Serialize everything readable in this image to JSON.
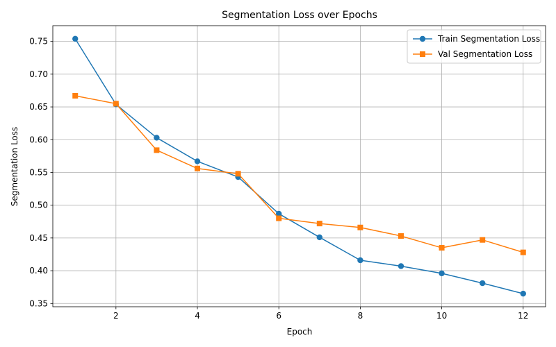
{
  "chart_data": {
    "type": "line",
    "title": "Segmentation Loss over Epochs",
    "xlabel": "Epoch",
    "ylabel": "Segmentation Loss",
    "x": [
      1,
      2,
      3,
      4,
      5,
      6,
      7,
      8,
      9,
      10,
      11,
      12
    ],
    "xlim": [
      0.45,
      12.55
    ],
    "ylim": [
      0.345,
      0.774
    ],
    "xticks": [
      2,
      4,
      6,
      8,
      10,
      12
    ],
    "yticks": [
      0.35,
      0.4,
      0.45,
      0.5,
      0.55,
      0.6,
      0.65,
      0.7,
      0.75
    ],
    "ytick_labels": [
      "0.35",
      "0.40",
      "0.45",
      "0.50",
      "0.55",
      "0.60",
      "0.65",
      "0.70",
      "0.75"
    ],
    "grid": true,
    "legend_position": "top-right",
    "series": [
      {
        "name": "Train Segmentation Loss",
        "color": "#1f77b4",
        "marker": "circle",
        "values": [
          0.754,
          0.654,
          0.603,
          0.567,
          0.543,
          0.487,
          0.451,
          0.416,
          0.407,
          0.396,
          0.381,
          0.365
        ]
      },
      {
        "name": "Val Segmentation Loss",
        "color": "#ff7f0e",
        "marker": "square",
        "values": [
          0.667,
          0.655,
          0.584,
          0.556,
          0.548,
          0.48,
          0.472,
          0.466,
          0.453,
          0.435,
          0.447,
          0.428
        ]
      }
    ]
  }
}
